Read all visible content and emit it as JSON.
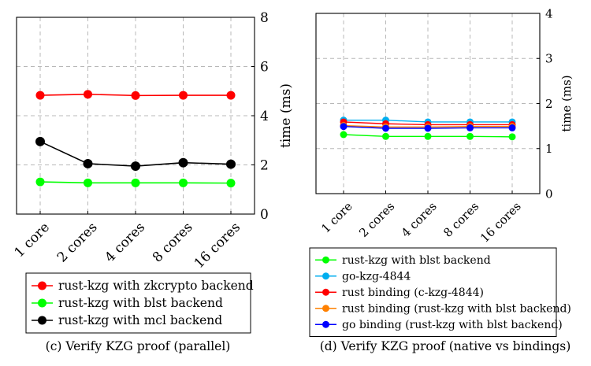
{
  "charts": [
    {
      "chart_data": {
        "type": "line",
        "title": "",
        "xlabel": "",
        "ylabel": "time (ms)",
        "categories": [
          "1 core",
          "2 cores",
          "4 cores",
          "8 cores",
          "16 cores"
        ],
        "ylim": [
          0,
          8
        ],
        "yticks": [
          0,
          2,
          4,
          6,
          8
        ],
        "grid": true,
        "legend_position": "bottom",
        "series": [
          {
            "name": "rust-kzg with zkcrypto backend",
            "color": "#ff0000",
            "values": [
              4.83,
              4.87,
              4.82,
              4.83,
              4.83
            ]
          },
          {
            "name": "rust-kzg with blst backend",
            "color": "#00ff00",
            "values": [
              1.31,
              1.27,
              1.27,
              1.27,
              1.26
            ]
          },
          {
            "name": "rust-kzg with mcl backend",
            "color": "#000000",
            "values": [
              2.95,
              2.05,
              1.95,
              2.09,
              2.03
            ]
          }
        ]
      },
      "caption": "(c) Verify KZG proof (parallel)"
    },
    {
      "chart_data": {
        "type": "line",
        "title": "",
        "xlabel": "",
        "ylabel": "time (ms)",
        "categories": [
          "1 core",
          "2 cores",
          "4 cores",
          "8 cores",
          "16 cores"
        ],
        "ylim": [
          0,
          4
        ],
        "yticks": [
          0,
          1,
          2,
          3,
          4
        ],
        "grid": true,
        "legend_position": "bottom",
        "series": [
          {
            "name": "rust-kzg with blst backend",
            "color": "#00ff00",
            "values": [
              1.31,
              1.27,
              1.27,
              1.27,
              1.26
            ]
          },
          {
            "name": "go-kzg-4844",
            "color": "#00aeef",
            "values": [
              1.63,
              1.63,
              1.59,
              1.59,
              1.59
            ]
          },
          {
            "name": "rust binding (c-kzg-4844)",
            "color": "#ff0000",
            "values": [
              1.59,
              1.55,
              1.53,
              1.53,
              1.53
            ]
          },
          {
            "name": "rust binding (rust-kzg with blst backend)",
            "color": "#ff8000",
            "values": [
              1.51,
              1.48,
              1.48,
              1.49,
              1.49
            ]
          },
          {
            "name": "go binding (rust-kzg with blst backend)",
            "color": "#0000ff",
            "values": [
              1.49,
              1.45,
              1.45,
              1.46,
              1.46
            ]
          }
        ]
      },
      "caption": "(d) Verify KZG proof (native vs bindings)"
    }
  ]
}
